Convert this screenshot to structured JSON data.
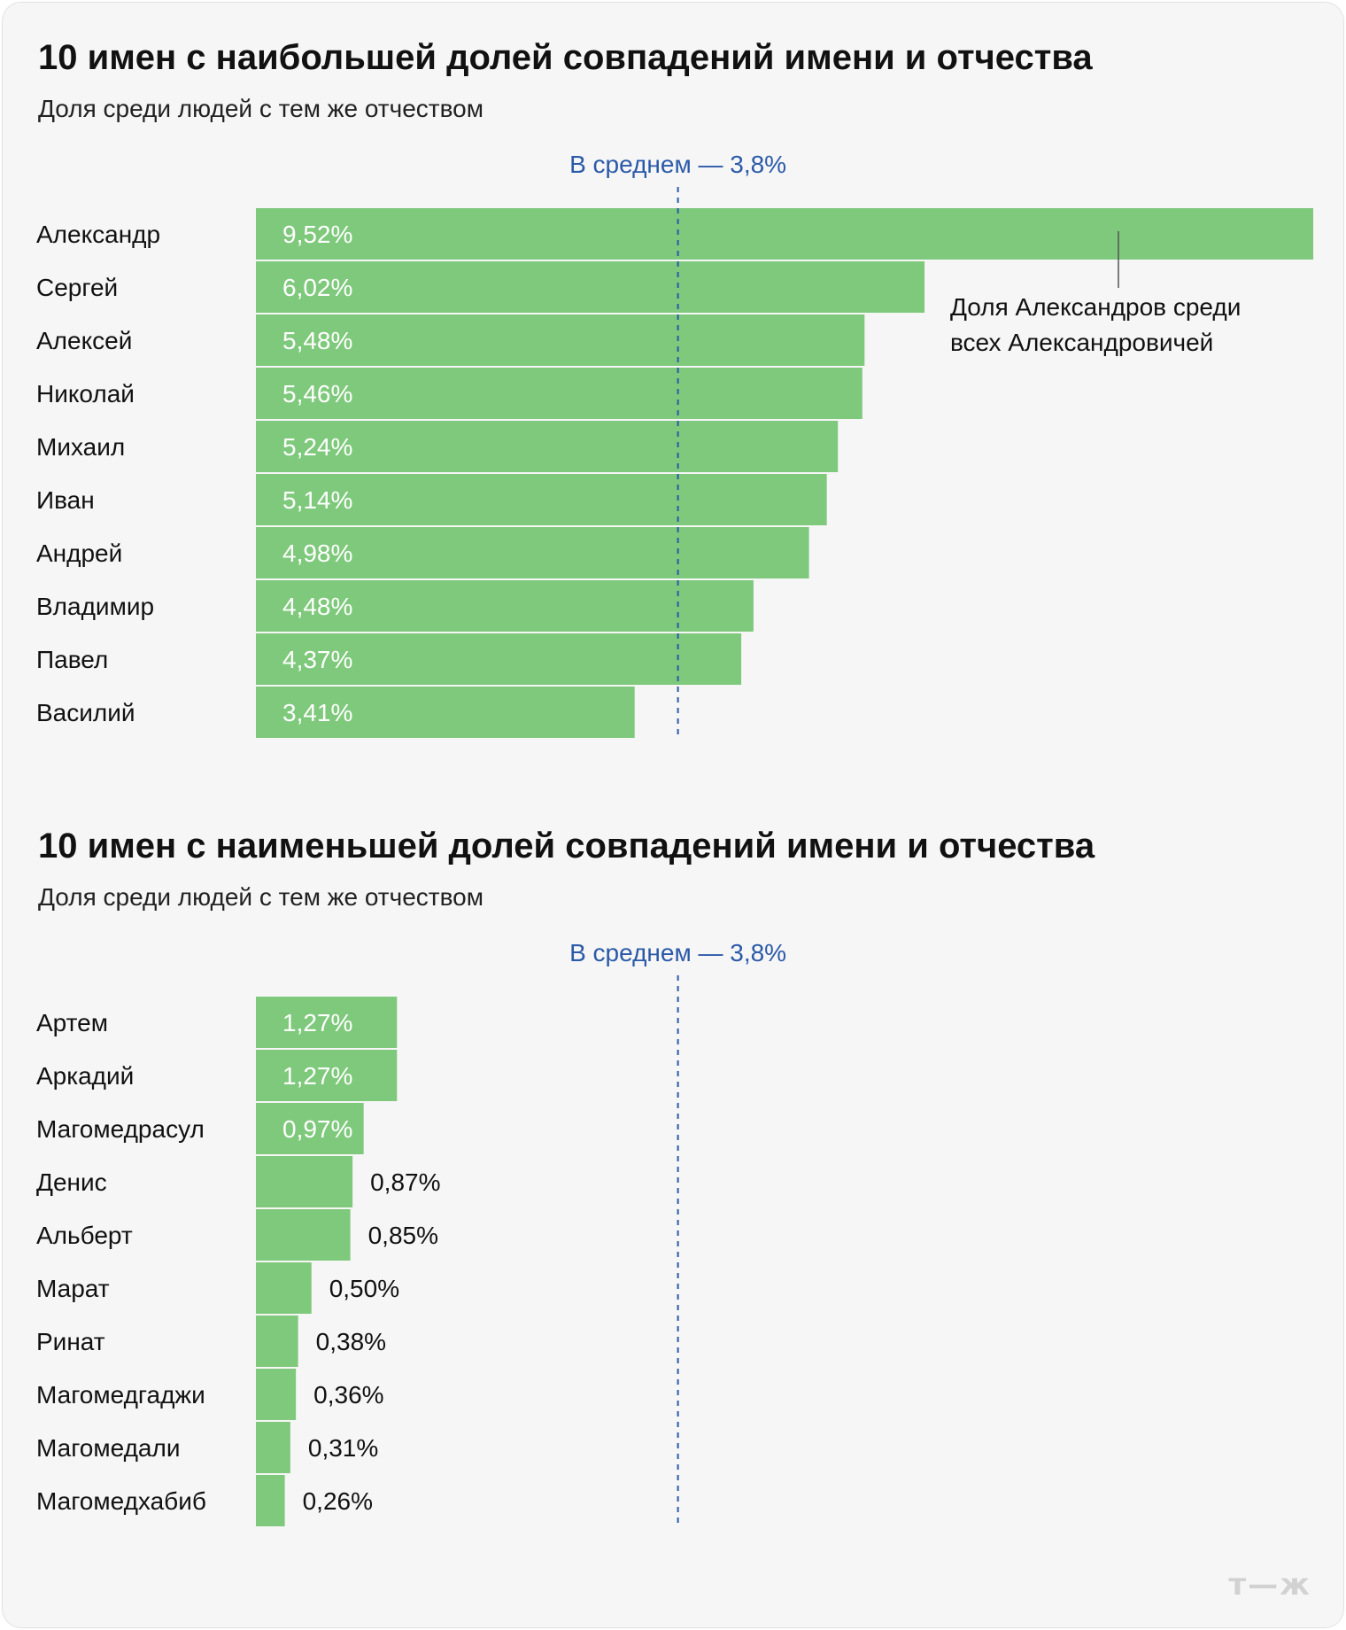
{
  "chart_data": [
    {
      "type": "bar",
      "orientation": "horizontal",
      "title": "10 имен с наибольшей долей совпадений имени и отчества",
      "subtitle": "Доля среди людей с тем же отчеством",
      "categories": [
        "Александр",
        "Сергей",
        "Алексей",
        "Николай",
        "Михаил",
        "Иван",
        "Андрей",
        "Владимир",
        "Павел",
        "Василий"
      ],
      "values": [
        9.52,
        6.02,
        5.48,
        5.46,
        5.24,
        5.14,
        4.98,
        4.48,
        4.37,
        3.41
      ],
      "value_labels": [
        "9,52%",
        "6,02%",
        "5,48%",
        "5,46%",
        "5,24%",
        "5,14%",
        "4,98%",
        "4,48%",
        "4,37%",
        "3,41%"
      ],
      "xlim": [
        0,
        9.52
      ],
      "bar_color": "#7fc97c",
      "reference_line": {
        "value": 3.8,
        "label": "В среднем — 3,8%",
        "color": "#2b5aa8"
      },
      "annotation": {
        "lines": [
          "Доля Александров среди",
          "всех Александровичей"
        ],
        "category": "Александр"
      }
    },
    {
      "type": "bar",
      "orientation": "horizontal",
      "title": "10 имен с наименьшей долей совпадений имени и отчества",
      "subtitle": "Доля среди людей с тем же отчеством",
      "categories": [
        "Артем",
        "Аркадий",
        "Магомедрасул",
        "Денис",
        "Альберт",
        "Марат",
        "Ринат",
        "Магомедгаджи",
        "Магомедали",
        "Магомедхабиб"
      ],
      "values": [
        1.27,
        1.27,
        0.97,
        0.87,
        0.85,
        0.5,
        0.38,
        0.36,
        0.31,
        0.26
      ],
      "value_labels": [
        "1,27%",
        "1,27%",
        "0,97%",
        "0,87%",
        "0,85%",
        "0,50%",
        "0,38%",
        "0,36%",
        "0,31%",
        "0,26%"
      ],
      "xlim": [
        0,
        9.52
      ],
      "bar_color": "#7fc97c",
      "reference_line": {
        "value": 3.8,
        "label": "В среднем — 3,8%",
        "color": "#2b5aa8"
      }
    }
  ],
  "brand": {
    "logo_text": "т—ж"
  },
  "colors": {
    "background": "#f6f6f6",
    "bar": "#7fc97c",
    "reference": "#2b5aa8",
    "label_inside": "#ffffff",
    "label_outside": "#111111"
  }
}
